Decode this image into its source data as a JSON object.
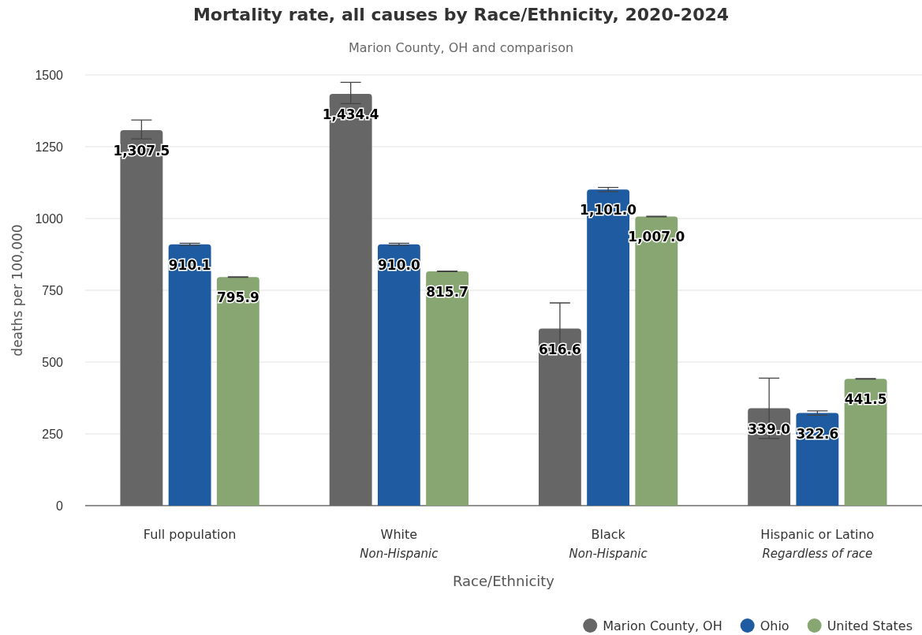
{
  "chart_data": {
    "type": "bar",
    "title": "Mortality rate, all causes by Race/Ethnicity, 2020-2024",
    "subtitle": "Marion County, OH and comparison",
    "xlabel": "Race/Ethnicity",
    "ylabel": "deaths per 100,000",
    "categories": [
      "Full population",
      "White\nNon-Hispanic",
      "Black\nNon-Hispanic",
      "Hispanic or Latino\nRegardless of race"
    ],
    "series": [
      {
        "name": "Marion County, OH",
        "color": "#666666",
        "values": [
          1307.5,
          1434.4,
          616.6,
          339.0
        ],
        "errors": [
          [
            1277,
            1343
          ],
          [
            1400,
            1474
          ],
          [
            530,
            706
          ],
          [
            234,
            444
          ]
        ],
        "value_labels": [
          "1,307.5",
          "1,434.4",
          "616.6",
          "339.0"
        ]
      },
      {
        "name": "Ohio",
        "color": "#1f5ba0",
        "values": [
          910.1,
          910.0,
          1101.0,
          322.6
        ],
        "errors": [
          [
            906,
            914
          ],
          [
            906,
            914
          ],
          [
            1094,
            1108
          ],
          [
            315,
            330
          ]
        ],
        "value_labels": [
          "910.1",
          "910.0",
          "1,101.0",
          "322.6"
        ]
      },
      {
        "name": "United States",
        "color": "#87a672",
        "values": [
          795.9,
          815.7,
          1007.0,
          441.5
        ],
        "errors": [
          [
            795,
            797
          ],
          [
            815,
            817
          ],
          [
            1006,
            1008
          ],
          [
            440.5,
            442.5
          ]
        ],
        "value_labels": [
          "795.9",
          "815.7",
          "1,007.0",
          "441.5"
        ]
      }
    ],
    "ylim": [
      0,
      1500
    ],
    "yticks": [
      0,
      250,
      500,
      750,
      1000,
      1250,
      1500
    ],
    "grid": "y",
    "legend": "bottom right"
  }
}
